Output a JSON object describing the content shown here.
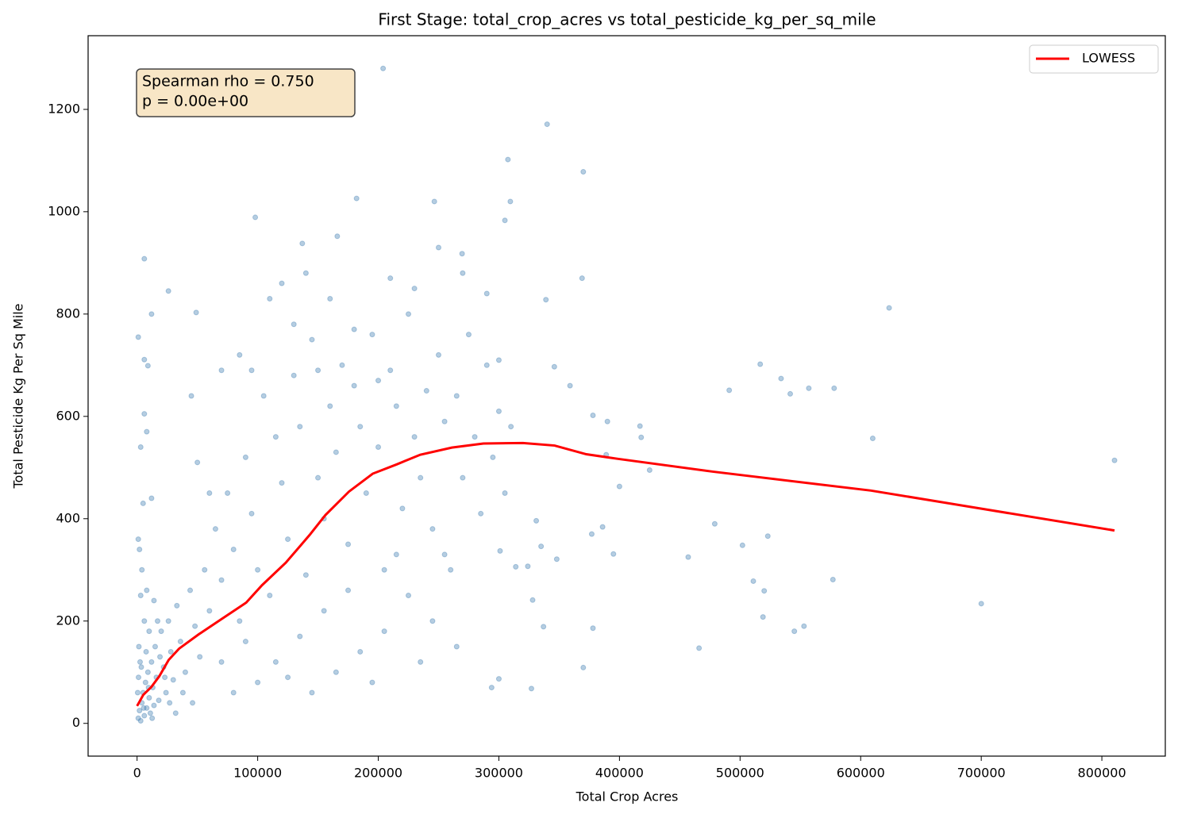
{
  "chart_data": {
    "type": "scatter",
    "title": "First Stage: total_crop_acres vs total_pesticide_kg_per_sq_mile",
    "x_label": "Total Crop Acres",
    "y_label": "Total Pesticide Kg Per Sq Mile",
    "annotations": [
      "Spearman rho = 0.750",
      "p = 0.00e+00"
    ],
    "legend": "upper right",
    "xlim": [
      -40600,
      852600
    ],
    "ylim": [
      -64,
      1344
    ],
    "xticks": [
      0,
      100000,
      200000,
      300000,
      400000,
      500000,
      600000,
      700000,
      800000
    ],
    "yticks": [
      0,
      200,
      400,
      600,
      800,
      1000,
      1200
    ],
    "series": [
      {
        "color": "#4682b4",
        "opacity": 0.4,
        "x": [
          204000,
          340000,
          307500,
          370000,
          309500,
          246500,
          182000,
          98000,
          305000,
          6000,
          26000,
          12000,
          49000,
          369000,
          623600,
          1000,
          6000,
          9000,
          269500,
          166000,
          137000,
          700000,
          810500,
          610000,
          578000,
          557000,
          534000,
          516700,
          541600,
          491000,
          479000,
          457000,
          502000,
          523000,
          511000,
          520000,
          519000,
          545000,
          553000,
          577000,
          466000,
          400000,
          417000,
          425000,
          418000,
          389000,
          378000,
          390000,
          359000,
          346000,
          339000,
          386000,
          377000,
          395000,
          378000,
          370000,
          327000,
          300000,
          294000,
          301000,
          314000,
          328000,
          337000,
          324000,
          331000,
          335000,
          348000,
          1000,
          2000,
          3000,
          4000,
          5000,
          6000,
          7000,
          8000,
          9000,
          10000,
          11000,
          12000,
          13000,
          14000,
          15000,
          16000,
          18000,
          20000,
          22000,
          24000,
          26000,
          28000,
          30000,
          33000,
          36000,
          40000,
          44000,
          48000,
          52000,
          56000,
          60000,
          2000,
          4000,
          3000,
          6000,
          1500,
          2500,
          8000,
          10000,
          14000,
          500,
          1200,
          3500,
          5500,
          7500,
          9500,
          12500,
          17000,
          19000,
          23000,
          27000,
          32000,
          38000,
          46000,
          5000,
          3000,
          8000,
          6000,
          1000,
          12000,
          65000,
          70000,
          75000,
          80000,
          85000,
          90000,
          95000,
          100000,
          105000,
          110000,
          115000,
          120000,
          125000,
          130000,
          135000,
          140000,
          145000,
          150000,
          155000,
          160000,
          165000,
          170000,
          175000,
          180000,
          185000,
          190000,
          195000,
          200000,
          205000,
          210000,
          215000,
          220000,
          225000,
          230000,
          235000,
          240000,
          245000,
          250000,
          255000,
          260000,
          265000,
          270000,
          275000,
          280000,
          285000,
          290000,
          295000,
          300000,
          305000,
          310000,
          115000,
          125000,
          135000,
          145000,
          155000,
          165000,
          175000,
          185000,
          195000,
          205000,
          215000,
          225000,
          235000,
          245000,
          255000,
          265000,
          85000,
          95000,
          110000,
          120000,
          130000,
          140000,
          150000,
          160000,
          180000,
          200000,
          210000,
          230000,
          250000,
          270000,
          290000,
          300000,
          70000,
          80000,
          90000,
          100000,
          60000,
          50000,
          45000,
          70000
        ],
        "values": [
          1280,
          1171,
          1102,
          1078,
          1020,
          1020,
          1026,
          989,
          983,
          908,
          845,
          800,
          803,
          870,
          812,
          755,
          711,
          699,
          918,
          952,
          938,
          234,
          514,
          557,
          655,
          655,
          674,
          702,
          644,
          651,
          390,
          325,
          348,
          366,
          278,
          259,
          208,
          180,
          190,
          281,
          147,
          463,
          581,
          495,
          559,
          525,
          602,
          590,
          660,
          697,
          828,
          384,
          370,
          331,
          186,
          109,
          68,
          87,
          70,
          337,
          306,
          241,
          189,
          307,
          396,
          346,
          321,
          10,
          25,
          5,
          40,
          60,
          15,
          80,
          30,
          100,
          50,
          20,
          120,
          70,
          35,
          150,
          90,
          45,
          180,
          110,
          60,
          200,
          140,
          85,
          230,
          160,
          100,
          260,
          190,
          130,
          300,
          220,
          340,
          300,
          250,
          200,
          150,
          120,
          260,
          180,
          240,
          60,
          90,
          110,
          30,
          140,
          70,
          10,
          200,
          130,
          90,
          40,
          20,
          60,
          40,
          430,
          540,
          570,
          605,
          360,
          440,
          380,
          280,
          450,
          340,
          200,
          520,
          410,
          300,
          640,
          250,
          560,
          470,
          360,
          680,
          580,
          290,
          750,
          480,
          400,
          620,
          530,
          700,
          350,
          660,
          580,
          450,
          760,
          540,
          300,
          690,
          620,
          420,
          800,
          560,
          480,
          650,
          380,
          720,
          590,
          300,
          640,
          480,
          760,
          560,
          410,
          700,
          520,
          610,
          450,
          580,
          120,
          90,
          170,
          60,
          220,
          100,
          260,
          140,
          80,
          180,
          330,
          250,
          120,
          200,
          330,
          150,
          720,
          690,
          830,
          860,
          780,
          880,
          690,
          830,
          770,
          670,
          870,
          850,
          930,
          880,
          840,
          710,
          120,
          60,
          160,
          80,
          450,
          510,
          640,
          690
        ]
      },
      {
        "name": "LOWESS",
        "color": "#ff0000",
        "style": "line",
        "x": [
          0,
          5200,
          11800,
          18400,
          26200,
          34800,
          51100,
          70800,
          90500,
          103600,
          123300,
          143000,
          156100,
          175700,
          195400,
          215100,
          234800,
          261000,
          287200,
          320000,
          346200,
          372500,
          398700,
          477400,
          608500,
          810500
        ],
        "values": [
          34,
          56,
          71,
          92,
          124,
          146,
          174,
          205,
          236,
          270,
          314,
          368,
          407,
          453,
          488,
          506,
          525,
          539,
          547,
          548,
          543,
          526,
          517,
          492,
          455,
          377
        ]
      }
    ]
  }
}
